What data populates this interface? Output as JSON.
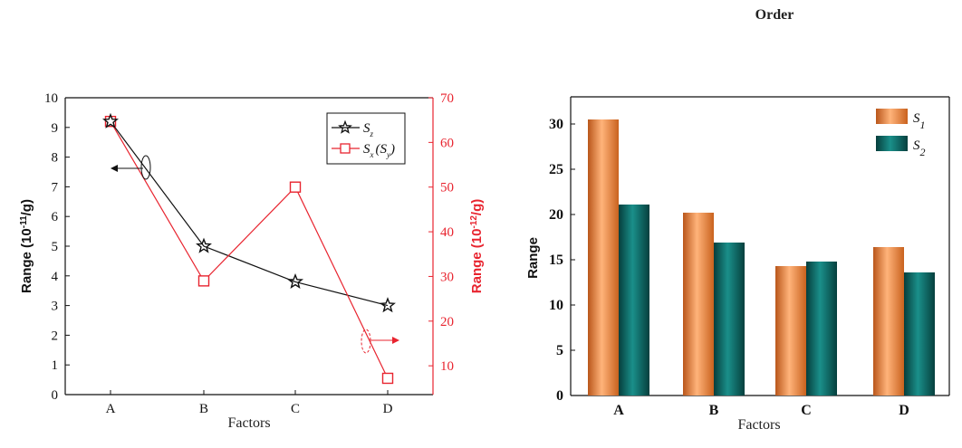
{
  "page": {
    "title": "Order"
  },
  "chart_data": [
    {
      "type": "line",
      "categories": [
        "A",
        "B",
        "C",
        "D"
      ],
      "xlabel": "Factors",
      "ylabel_left": "Range (10",
      "ylabel_left_exp": "-11",
      "ylabel_left_unit": "/g)",
      "ylabel_right": "Range (10",
      "ylabel_right_exp": "-12",
      "ylabel_right_unit": "/g)",
      "ylim_left": [
        0,
        10
      ],
      "ylim_right": [
        3.55,
        70
      ],
      "yticks_left": [
        "0",
        "1",
        "2",
        "3",
        "4",
        "5",
        "6",
        "7",
        "8",
        "9",
        "10"
      ],
      "yticks_right": [
        "10",
        "20",
        "30",
        "40",
        "50",
        "60",
        "70"
      ],
      "series": [
        {
          "name": "S",
          "name_sub": "z",
          "axis": "left",
          "marker": "star",
          "color": "#111111",
          "values": [
            9.2,
            5.0,
            3.8,
            3.0
          ]
        },
        {
          "name": "S",
          "name_sub": "x",
          "name_suffix": "(S",
          "name_suffix_sub": "y",
          "name_close": ")",
          "axis": "right",
          "marker": "square",
          "color": "#e8242f",
          "values": [
            64.7,
            29.0,
            50.0,
            7.2
          ]
        }
      ]
    },
    {
      "type": "bar",
      "categories": [
        "A",
        "B",
        "C",
        "D"
      ],
      "xlabel": "Factors",
      "ylabel": "Range",
      "ylim": [
        0,
        33
      ],
      "yticks": [
        "0",
        "5",
        "10",
        "15",
        "20",
        "25",
        "30"
      ],
      "series": [
        {
          "name": "S",
          "name_sub": "1",
          "color": "#f08a3c",
          "values": [
            30.5,
            20.2,
            14.3,
            16.4
          ]
        },
        {
          "name": "S",
          "name_sub": "2",
          "color": "#0b6b68",
          "values": [
            21.1,
            16.9,
            14.8,
            13.6
          ]
        }
      ]
    }
  ]
}
